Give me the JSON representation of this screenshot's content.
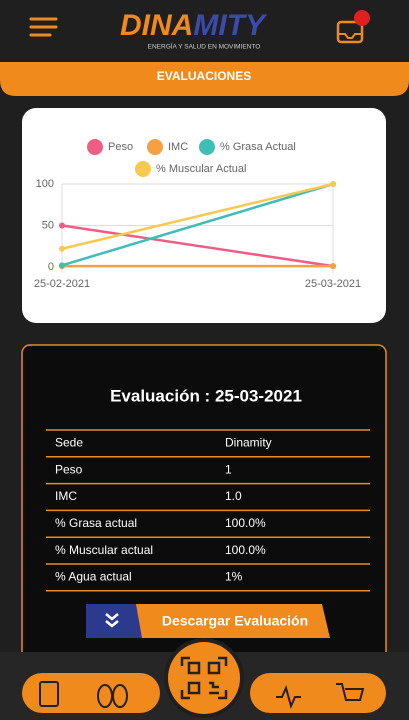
{
  "header": {
    "logo_part1": "DINA",
    "logo_part2": "MITY",
    "tagline": "ENERGÍA Y SALUD EN MOVIMIENTO",
    "section": "EVALUACIONES"
  },
  "chart_data": {
    "type": "line",
    "categories": [
      "25-02-2021",
      "25-03-2021"
    ],
    "series": [
      {
        "name": "Peso",
        "color": "#ef5d82",
        "values": [
          50,
          1
        ]
      },
      {
        "name": "IMC",
        "color": "#f5a142",
        "values": [
          1,
          1
        ]
      },
      {
        "name": "% Grasa Actual",
        "color": "#3fbdb6",
        "values": [
          2,
          100
        ]
      },
      {
        "name": "% Muscular Actual",
        "color": "#f9c84f",
        "values": [
          22,
          100
        ]
      }
    ],
    "ylim": [
      0,
      100
    ],
    "yticks": [
      0,
      50,
      100
    ],
    "grid": true
  },
  "evaluation": {
    "title": "Evaluación : 25-03-2021",
    "table": {
      "rows": [
        [
          "Sede",
          "Dinamity"
        ],
        [
          "Peso",
          "1"
        ],
        [
          "IMC",
          "1.0"
        ],
        [
          "% Grasa actual",
          "100.0%"
        ],
        [
          "% Muscular actual",
          "100.0%"
        ],
        [
          "% Agua actual",
          "1%"
        ]
      ]
    },
    "button": "Descargar Evaluación"
  }
}
